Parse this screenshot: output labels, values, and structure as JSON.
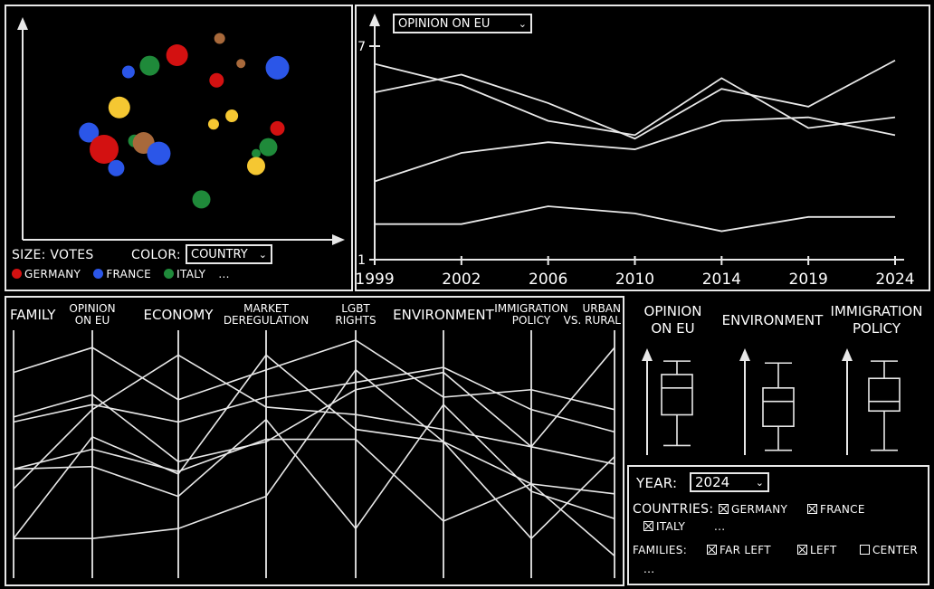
{
  "scatter": {
    "size_label": "SIZE: VOTES",
    "color_label": "COLOR:",
    "color_select": "COUNTRY",
    "legend": [
      {
        "name": "GERMANY",
        "color": "#d31111"
      },
      {
        "name": "FRANCE",
        "color": "#2b56e8"
      },
      {
        "name": "ITALY",
        "color": "#1f8a3a"
      }
    ],
    "legend_more": "...",
    "points": [
      {
        "x": 0.49,
        "y": 0.87,
        "r": 12,
        "color": "#d31111"
      },
      {
        "x": 0.82,
        "y": 0.81,
        "r": 13,
        "color": "#2b56e8"
      },
      {
        "x": 0.4,
        "y": 0.82,
        "r": 11,
        "color": "#1f8a3a"
      },
      {
        "x": 0.63,
        "y": 0.95,
        "r": 6,
        "color": "#a8693b"
      },
      {
        "x": 0.7,
        "y": 0.83,
        "r": 5,
        "color": "#a8693b"
      },
      {
        "x": 0.33,
        "y": 0.79,
        "r": 7,
        "color": "#2b56e8"
      },
      {
        "x": 0.62,
        "y": 0.75,
        "r": 8,
        "color": "#d31111"
      },
      {
        "x": 0.3,
        "y": 0.62,
        "r": 12,
        "color": "#f5c732"
      },
      {
        "x": 0.67,
        "y": 0.58,
        "r": 7,
        "color": "#f5c732"
      },
      {
        "x": 0.2,
        "y": 0.5,
        "r": 11,
        "color": "#2b56e8"
      },
      {
        "x": 0.61,
        "y": 0.54,
        "r": 6,
        "color": "#f5c732"
      },
      {
        "x": 0.82,
        "y": 0.52,
        "r": 8,
        "color": "#d31111"
      },
      {
        "x": 0.25,
        "y": 0.42,
        "r": 16,
        "color": "#d31111"
      },
      {
        "x": 0.35,
        "y": 0.46,
        "r": 7,
        "color": "#1f8a3a"
      },
      {
        "x": 0.38,
        "y": 0.45,
        "r": 12,
        "color": "#a8693b"
      },
      {
        "x": 0.43,
        "y": 0.4,
        "r": 13,
        "color": "#2b56e8"
      },
      {
        "x": 0.79,
        "y": 0.43,
        "r": 10,
        "color": "#1f8a3a"
      },
      {
        "x": 0.75,
        "y": 0.4,
        "r": 5,
        "color": "#1f8a3a"
      },
      {
        "x": 0.29,
        "y": 0.33,
        "r": 9,
        "color": "#2b56e8"
      },
      {
        "x": 0.75,
        "y": 0.34,
        "r": 10,
        "color": "#f5c732"
      },
      {
        "x": 0.57,
        "y": 0.18,
        "r": 10,
        "color": "#1f8a3a"
      }
    ]
  },
  "chart_data": {
    "type": "line",
    "y_select": "OPINION ON EU",
    "x": [
      "1999",
      "2002",
      "2006",
      "2010",
      "2014",
      "2019",
      "2024"
    ],
    "y_ticks": [
      "1",
      "7"
    ],
    "ylim": [
      1,
      7
    ],
    "series": [
      {
        "values": [
          6.5,
          5.9,
          4.9,
          4.5,
          6.1,
          4.7,
          5.0
        ]
      },
      {
        "values": [
          5.7,
          6.2,
          5.4,
          4.4,
          5.8,
          5.3,
          6.6
        ]
      },
      {
        "values": [
          3.2,
          4.0,
          4.3,
          4.1,
          4.9,
          5.0,
          4.5
        ]
      },
      {
        "values": [
          2.0,
          2.0,
          2.5,
          2.3,
          1.8,
          2.2,
          2.2
        ]
      }
    ]
  },
  "parallel": {
    "axes": [
      "FAMILY",
      "OPINION ON EU",
      "ECONOMY",
      "MARKET DEREGULATION",
      "LGBT RIGHTS",
      "ENVIRONMENT",
      "IMMIGRATION POLICY",
      "URBAN VS. RURAL"
    ],
    "axis_labels": [
      [
        "FAMILY"
      ],
      [
        "OPINION",
        "ON EU"
      ],
      [
        "ECONOMY"
      ],
      [
        "MARKET",
        "DEREGULATION"
      ],
      [
        "LGBT",
        "RIGHTS"
      ],
      [
        "ENVIRONMENT"
      ],
      [
        "IMMIGRATION",
        "POLICY"
      ],
      [
        "URBAN",
        "VS. RURAL"
      ]
    ],
    "lines": [
      [
        0.83,
        0.93,
        0.72,
        0.84,
        0.96,
        0.73,
        0.76,
        0.68
      ],
      [
        0.63,
        0.7,
        0.63,
        0.73,
        0.79,
        0.85,
        0.68,
        0.59
      ],
      [
        0.65,
        0.74,
        0.47,
        0.55,
        0.76,
        0.83,
        0.53,
        0.93
      ],
      [
        0.36,
        0.68,
        0.9,
        0.69,
        0.66,
        0.6,
        0.53,
        0.46
      ],
      [
        0.16,
        0.57,
        0.42,
        0.9,
        0.6,
        0.55,
        0.38,
        0.34
      ],
      [
        0.44,
        0.45,
        0.33,
        0.64,
        0.2,
        0.7,
        0.35,
        0.24
      ],
      [
        0.44,
        0.52,
        0.43,
        0.56,
        0.56,
        0.23,
        0.38,
        0.09
      ],
      [
        0.16,
        0.16,
        0.2,
        0.33,
        0.84,
        0.55,
        0.16,
        0.49
      ]
    ]
  },
  "boxplots": [
    {
      "label": [
        "OPINION",
        "ON EU"
      ],
      "min": 0.1,
      "q1": 0.42,
      "median": 0.7,
      "q3": 0.84,
      "max": 0.98
    },
    {
      "label": [
        "ENVIRONMENT"
      ],
      "min": 0.05,
      "q1": 0.3,
      "median": 0.56,
      "q3": 0.7,
      "max": 0.96
    },
    {
      "label": [
        "IMMIGRATION",
        "POLICY"
      ],
      "min": 0.05,
      "q1": 0.46,
      "median": 0.56,
      "q3": 0.8,
      "max": 0.98
    }
  ],
  "filters": {
    "year_label": "YEAR:",
    "year_value": "2024",
    "countries_label": "COUNTRIES:",
    "countries": [
      {
        "name": "GERMANY",
        "checked": true
      },
      {
        "name": "FRANCE",
        "checked": true
      },
      {
        "name": "ITALY",
        "checked": true
      }
    ],
    "countries_more": "...",
    "families_label": "FAMILIES:",
    "families": [
      {
        "name": "FAR LEFT",
        "checked": true
      },
      {
        "name": "LEFT",
        "checked": true
      },
      {
        "name": "CENTER",
        "checked": false
      }
    ],
    "families_more": "..."
  }
}
